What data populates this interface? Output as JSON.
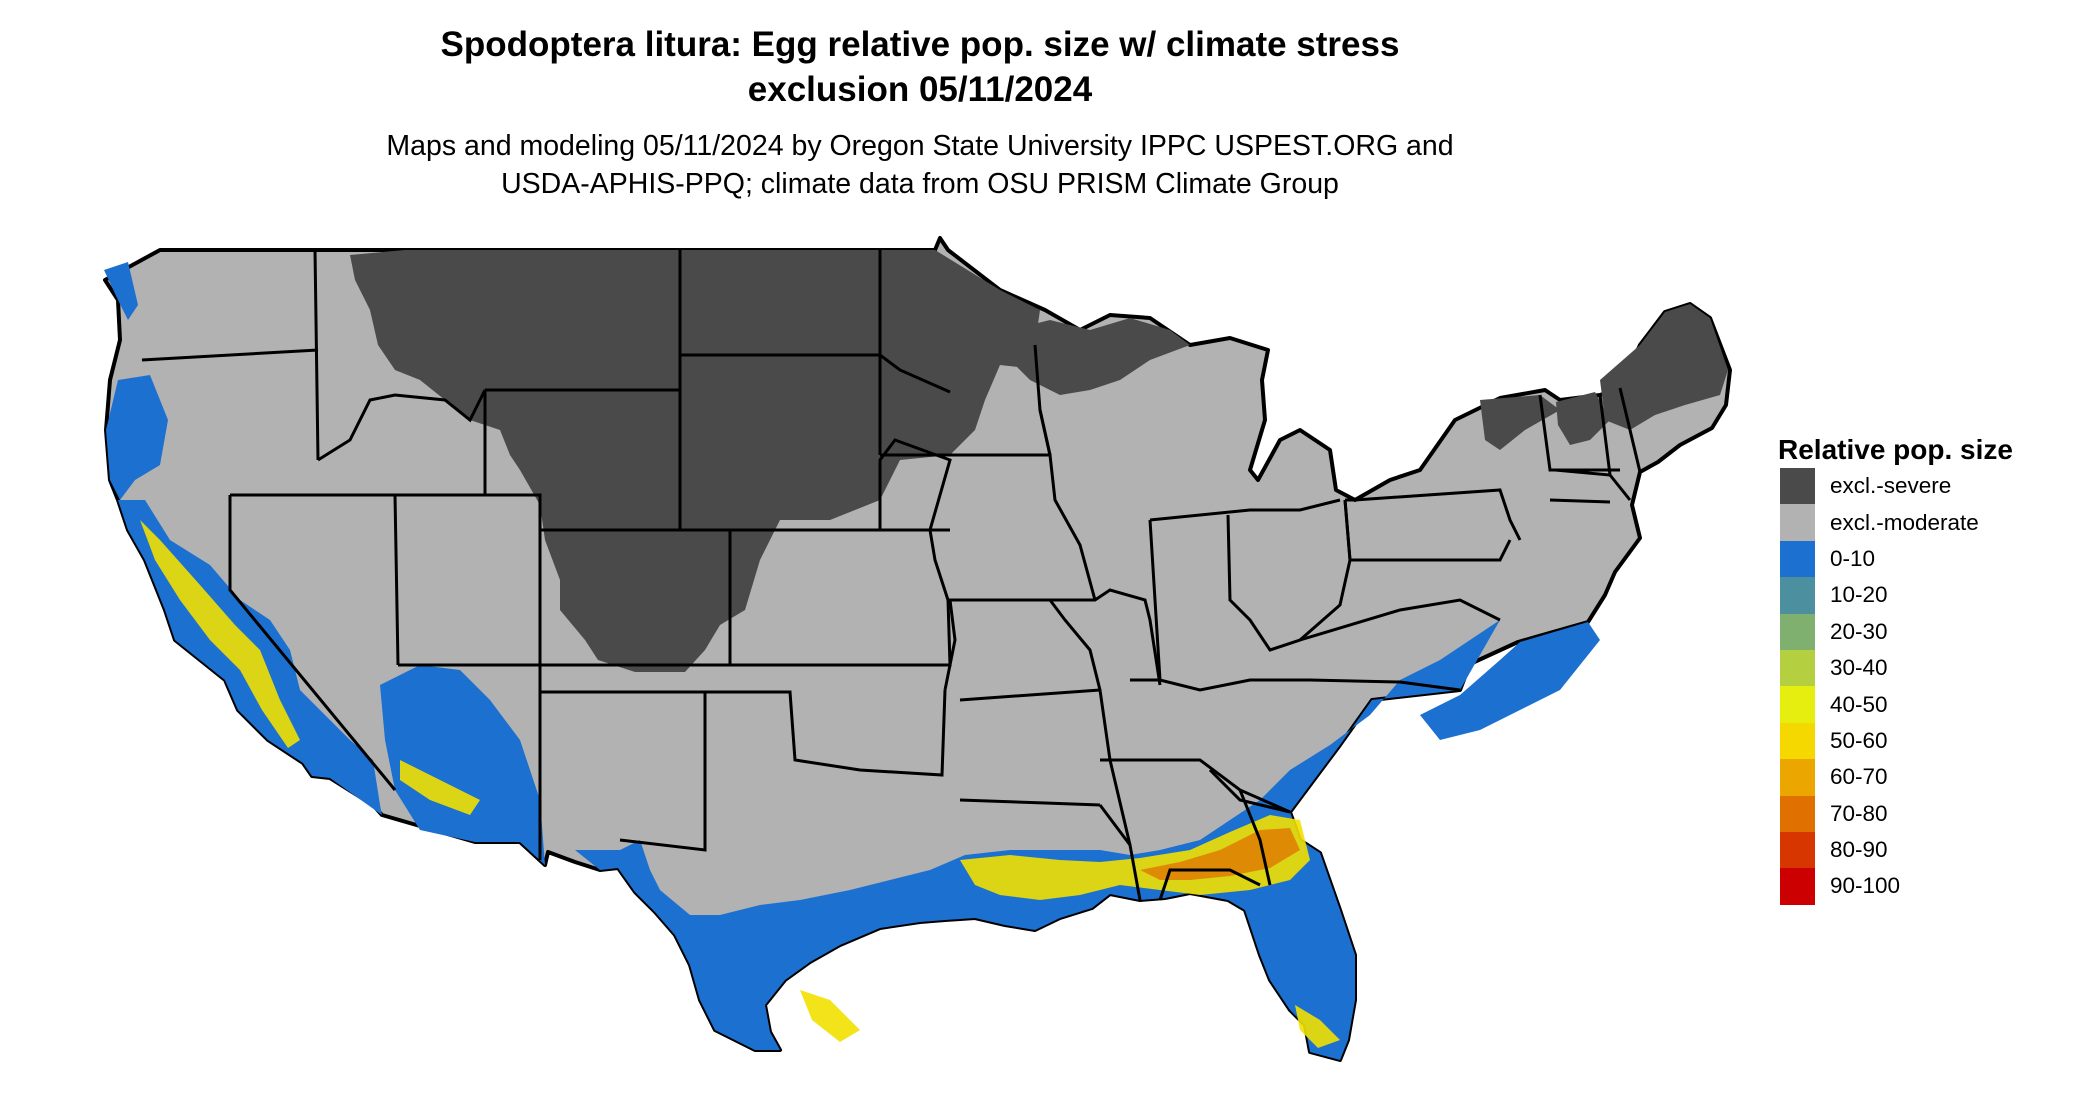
{
  "title_line1": "Spodoptera litura: Egg relative pop. size w/ climate stress",
  "title_line2": "exclusion 05/11/2024",
  "subtitle_line1": "Maps and modeling 05/11/2024 by Oregon State University IPPC USPEST.ORG and",
  "subtitle_line2": "USDA-APHIS-PPQ; climate data from OSU PRISM Climate Group",
  "legend": {
    "title": "Relative pop. size",
    "items": [
      {
        "label": "excl.-severe",
        "color": "#4a4a4a"
      },
      {
        "label": "excl.-moderate",
        "color": "#b2b2b2"
      },
      {
        "label": "0-10",
        "color": "#1c70d0"
      },
      {
        "label": "10-20",
        "color": "#4c90a0"
      },
      {
        "label": "20-30",
        "color": "#80b070"
      },
      {
        "label": "30-40",
        "color": "#b4d040"
      },
      {
        "label": "40-50",
        "color": "#e6ee10"
      },
      {
        "label": "50-60",
        "color": "#f5d800"
      },
      {
        "label": "60-70",
        "color": "#eba600"
      },
      {
        "label": "70-80",
        "color": "#e07000"
      },
      {
        "label": "80-90",
        "color": "#d83600"
      },
      {
        "label": "90-100",
        "color": "#cc0000"
      }
    ]
  }
}
